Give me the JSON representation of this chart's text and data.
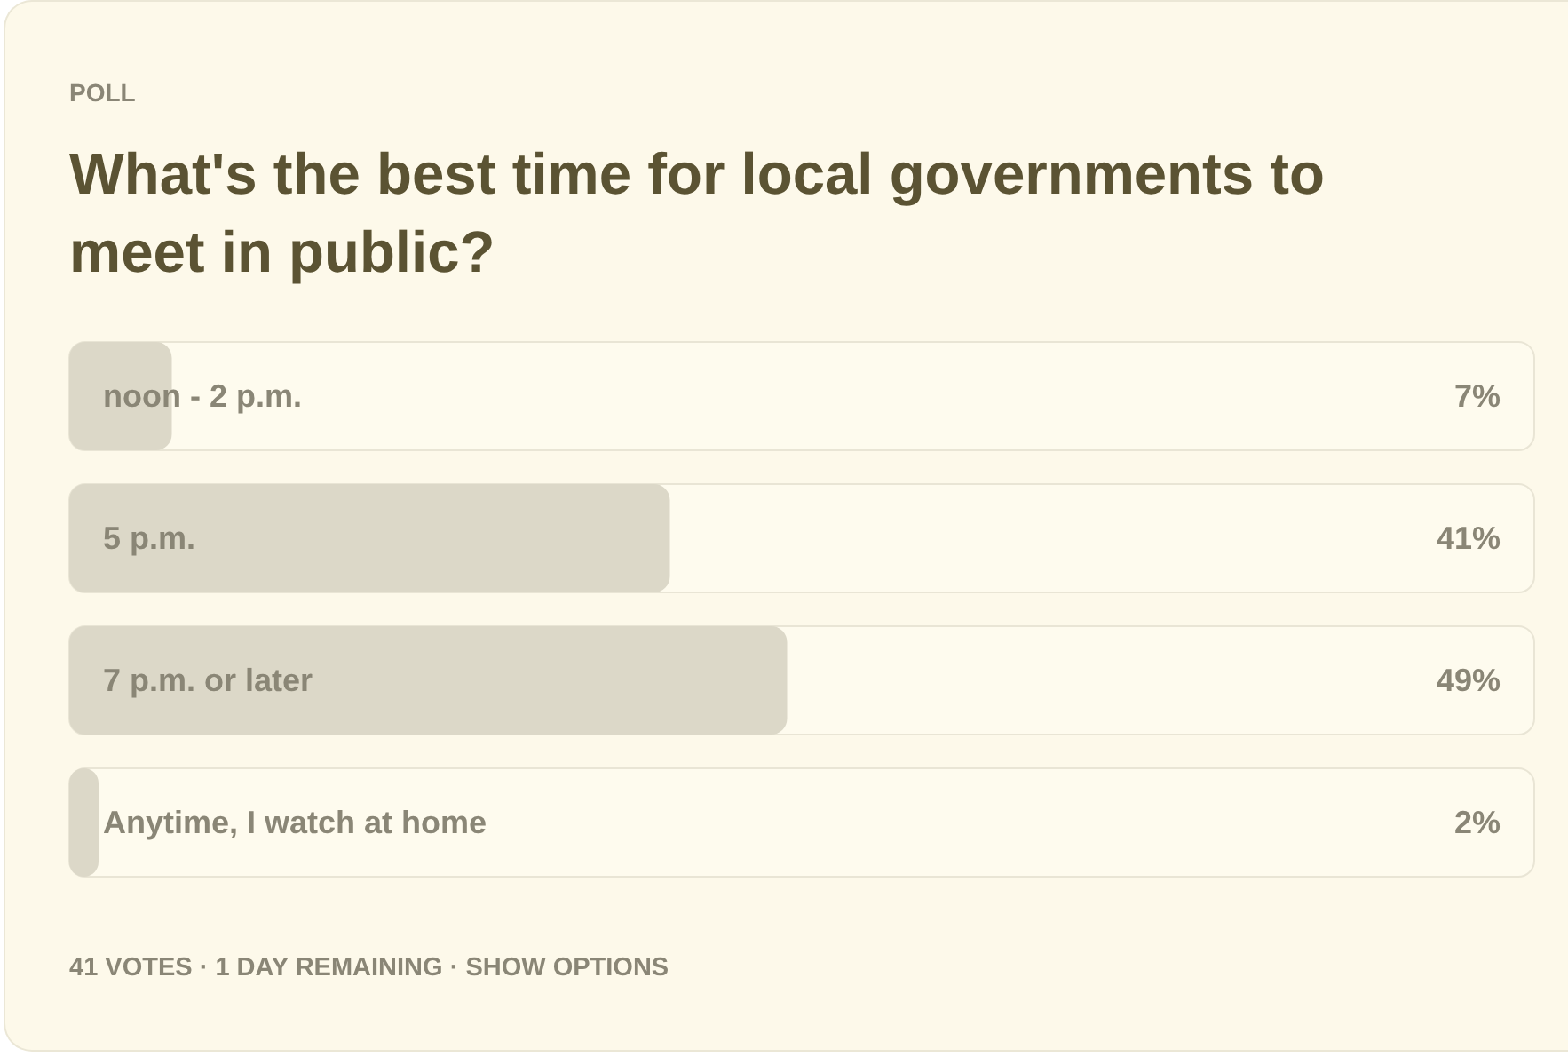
{
  "chart_data": {
    "type": "bar",
    "orientation": "horizontal",
    "subtitle": "POLL",
    "title": "What's the best time for local governments to meet in public?",
    "categories": [
      "noon - 2 p.m.",
      "5 p.m.",
      "7 p.m. or later",
      "Anytime, I watch at home"
    ],
    "values": [
      7,
      41,
      49,
      2
    ],
    "value_labels": [
      "7%",
      "41%",
      "49%",
      "2%"
    ],
    "color": "#dcd8c8",
    "xlim": [
      0,
      100
    ],
    "tick_labels": "y",
    "annotations": [
      "41 VOTES · 1 DAY REMAINING · SHOW OPTIONS"
    ]
  }
}
